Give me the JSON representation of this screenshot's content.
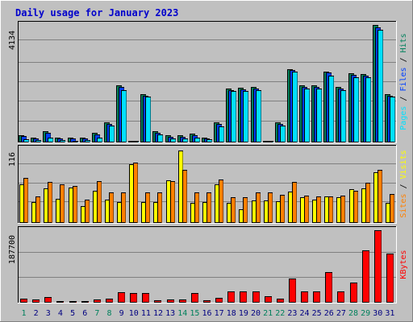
{
  "chart_data": {
    "type": "bar",
    "title": "Daily usage for January 2023",
    "categories": [
      "1",
      "2",
      "3",
      "4",
      "5",
      "6",
      "7",
      "8",
      "9",
      "10",
      "11",
      "12",
      "13",
      "14",
      "15",
      "16",
      "17",
      "18",
      "19",
      "20",
      "21",
      "22",
      "23",
      "24",
      "25",
      "26",
      "27",
      "28",
      "29",
      "30",
      "31"
    ],
    "weekend_days": [
      1,
      7,
      8,
      14,
      15,
      21,
      22,
      28,
      29
    ],
    "panels": [
      {
        "id": "hits-files-pages",
        "ymax_label": "4134",
        "ymax": 4134,
        "legend": [
          "Pages",
          "Files",
          "Hits"
        ],
        "legend_colors": [
          "#00e0ff",
          "#0040ff",
          "#00805c"
        ],
        "series": [
          {
            "name": "Hits",
            "color": "#00805c",
            "values": [
              250,
              160,
              400,
              180,
              160,
              170,
              330,
              700,
              2000,
              40,
              1700,
              400,
              250,
              250,
              300,
              160,
              700,
              1900,
              1930,
              1950,
              50,
              700,
              2590,
              2000,
              2000,
              2500,
              1950,
              2430,
              2400,
              4134,
              1700
            ]
          },
          {
            "name": "Files",
            "color": "#0040ff",
            "values": [
              220,
              140,
              330,
              150,
              140,
              150,
              290,
              660,
              1950,
              35,
              1650,
              350,
              210,
              210,
              260,
              140,
              650,
              1850,
              1880,
              1900,
              40,
              650,
              2550,
              1950,
              1950,
              2450,
              1900,
              2380,
              2350,
              4050,
              1650
            ]
          },
          {
            "name": "Pages",
            "color": "#00e0ff",
            "values": [
              120,
              90,
              180,
              80,
              70,
              80,
              160,
              600,
              1850,
              30,
              1600,
              280,
              150,
              150,
              180,
              120,
              580,
              1800,
              1820,
              1850,
              30,
              600,
              2500,
              1900,
              1900,
              2350,
              1850,
              2300,
              2300,
              3950,
              1600
            ]
          }
        ]
      },
      {
        "id": "visits-sites",
        "ymax_label": "116",
        "ymax": 116,
        "legend": [
          "Sites",
          "Visits"
        ],
        "legend_colors": [
          "#ff8000",
          "#ffff00"
        ],
        "series": [
          {
            "name": "Visits",
            "color": "#ffff00",
            "values": [
              61,
              33,
              54,
              38,
              55,
              27,
              51,
              37,
              33,
              92,
              33,
              33,
              67,
              114,
              31,
              33,
              61,
              32,
              22,
              35,
              35,
              34,
              49,
              40,
              37,
              42,
              40,
              53,
              54,
              80,
              31
            ]
          },
          {
            "name": "Sites",
            "color": "#ff8000",
            "values": [
              70,
              42,
              64,
              60,
              58,
              37,
              65,
              48,
              48,
              94,
              48,
              48,
              65,
              83,
              48,
              48,
              68,
              40,
              40,
              48,
              48,
              44,
              64,
              43,
              42,
              42,
              43,
              50,
              63,
              83,
              45
            ]
          }
        ]
      },
      {
        "id": "kbytes",
        "ymax_label": "187700",
        "ymax": 187700,
        "legend": [
          "KBytes"
        ],
        "legend_colors": [
          "#ff0000"
        ],
        "series": [
          {
            "name": "KBytes",
            "color": "#ff0000",
            "values": [
              11000,
              9000,
              14000,
              4000,
              4000,
              5000,
              9000,
              10000,
              28000,
              24000,
              26000,
              7000,
              8000,
              8000,
              24000,
              6000,
              13000,
              30000,
              30000,
              30000,
              16000,
              11000,
              63000,
              30000,
              30000,
              80000,
              30000,
              52000,
              135000,
              187700,
              128000
            ]
          }
        ]
      }
    ]
  }
}
